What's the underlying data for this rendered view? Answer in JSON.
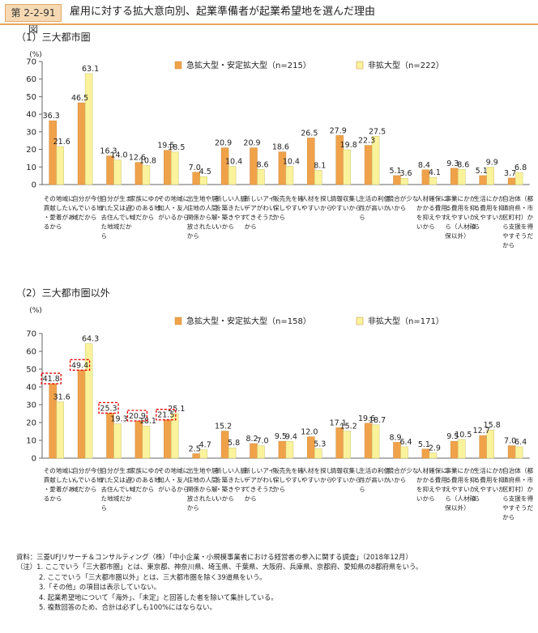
{
  "header": {
    "figure_label": "第 2-2-91 図",
    "title": "雇用に対する拡大意向別、起業準備者が起業希望地を選んだ理由"
  },
  "colors": {
    "series1": "#f0a24a",
    "series2": "#fbf39c",
    "highlight": "#e60000"
  },
  "chart_data": [
    {
      "type": "bar",
      "title": "（1）三大都市圏",
      "ylabel": "(%)",
      "ylim": [
        0,
        70
      ],
      "yticks": [
        0,
        10,
        20,
        30,
        40,
        50,
        60,
        70
      ],
      "categories": [
        "その地域に貢献したい・愛着があるから",
        "自分が今住んでいる地域だから",
        "自分が生まれた又は過去住んでいた地域だから",
        "家族にゆかりのある地域だから",
        "その地域に知人・友人がいるから",
        "出生地や居住地の人間関係から解放されたいから",
        "新しい人脈を築きたい・築きやすいから",
        "新しいアイデアがわいてきそうだから",
        "販売先を確保しやすいから",
        "人材を探しやすいから",
        "情報収集しやすいから",
        "生活の利便性が高いから",
        "競合が少ないから",
        "人材確保にかかる費用を抑えやすいから",
        "事業にかかる費用を抑えやすいから（人材確保以外）",
        "生活にかかる費用を抑えやすいから",
        "自治体（都道府県・市区町村）から支援を得やすそうだから"
      ],
      "series": [
        {
          "name": "急拡大型・安定拡大型（n=215）",
          "values": [
            36.3,
            46.5,
            16.3,
            12.6,
            19.5,
            7.0,
            20.9,
            20.9,
            18.6,
            26.5,
            27.9,
            22.3,
            5.1,
            8.4,
            9.3,
            5.1,
            3.7
          ]
        },
        {
          "name": "非拡大型（n=222）",
          "values": [
            21.6,
            63.1,
            14.0,
            10.8,
            18.5,
            4.5,
            10.4,
            8.6,
            10.4,
            8.1,
            19.8,
            27.5,
            3.6,
            4.1,
            8.6,
            9.9,
            6.8
          ]
        }
      ],
      "highlighted": []
    },
    {
      "type": "bar",
      "title": "（2）三大都市圏以外",
      "ylabel": "(%)",
      "ylim": [
        0,
        70
      ],
      "yticks": [
        0,
        10,
        20,
        30,
        40,
        50,
        60,
        70
      ],
      "categories": [
        "その地域に貢献したい・愛着があるから",
        "自分が今住んでいる地域だから",
        "自分が生まれた又は過去住んでいた地域だから",
        "家族にゆかりのある地域だから",
        "その地域に知人・友人がいるから",
        "出生地や居住地の人間関係から解放されたいから",
        "新しい人脈を築きたい・築きやすいから",
        "新しいアイデアがわいてきそうだから",
        "販売先を確保しやすいから",
        "人材を探しやすいから",
        "情報収集しやすいから",
        "生活の利便性が高いから",
        "競合が少ないから",
        "人材確保にかかる費用を抑えやすいから",
        "事業にかかる費用を抑えやすいから（人材確保以外）",
        "生活にかかる費用を抑えやすいから",
        "自治体（都道府県・市区町村）から支援を得やすそうだから"
      ],
      "series": [
        {
          "name": "急拡大型・安定拡大型（n=158）",
          "values": [
            41.8,
            49.4,
            25.3,
            20.9,
            21.5,
            2.5,
            15.2,
            8.2,
            9.5,
            12.0,
            17.1,
            19.6,
            8.9,
            5.1,
            9.5,
            12.7,
            7.0
          ]
        },
        {
          "name": "非拡大型（n=171）",
          "values": [
            31.6,
            64.3,
            19.3,
            18.1,
            25.1,
            4.7,
            5.8,
            7.0,
            9.4,
            5.3,
            15.2,
            18.7,
            6.4,
            2.9,
            10.5,
            15.8,
            6.4
          ]
        }
      ],
      "highlighted": [
        0,
        1,
        2,
        3,
        4
      ]
    }
  ],
  "notes": [
    "資料：三菱UFJリサーチ＆コンサルティング（株）「中小企業・小規模事業者における経営者の参入に関する調査」（2018年12月）",
    "（注）1. ここでいう「三大都市圏」とは、東京都、神奈川県、埼玉県、千葉県、大阪府、兵庫県、京都府、愛知県の8都府県をいう。",
    "2. ここでいう「三大都市圏以外」とは、三大都市圏を除く39道県をいう。",
    "3.「その他」の項目は表示していない。",
    "4. 起業希望地について「海外」、「未定」と回答した者を除いて集計している。",
    "5. 複数回答のため、合計は必ずしも100%にはならない。"
  ]
}
